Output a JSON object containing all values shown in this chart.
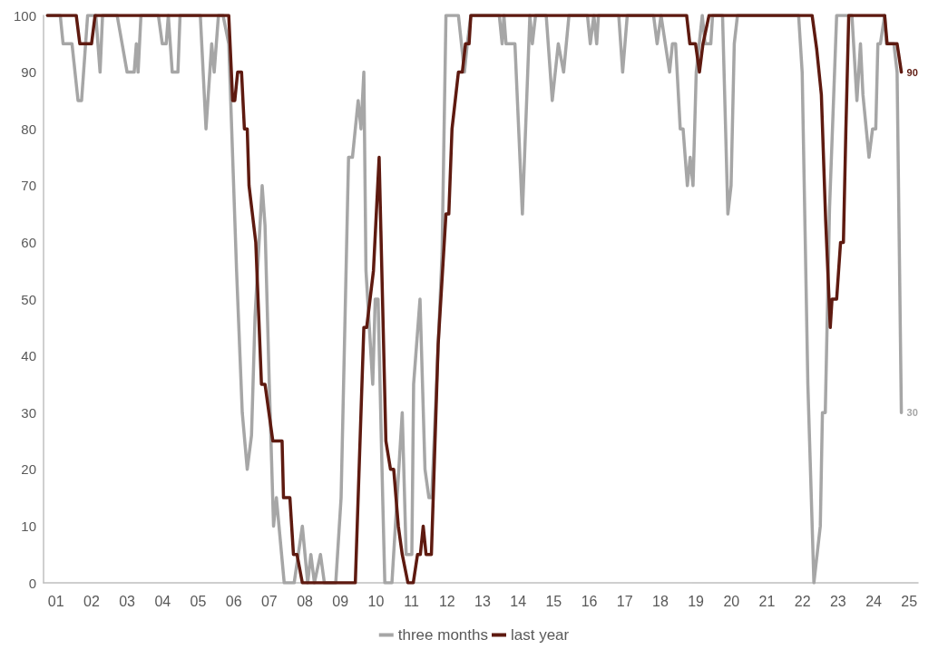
{
  "chart_data": {
    "type": "line",
    "xlim": [
      2000.65,
      2025.25
    ],
    "xticks": [
      {
        "value": 2001,
        "label": "01"
      },
      {
        "value": 2002,
        "label": "02"
      },
      {
        "value": 2003,
        "label": "03"
      },
      {
        "value": 2004,
        "label": "04"
      },
      {
        "value": 2005,
        "label": "05"
      },
      {
        "value": 2006,
        "label": "06"
      },
      {
        "value": 2007,
        "label": "07"
      },
      {
        "value": 2008,
        "label": "08"
      },
      {
        "value": 2009,
        "label": "09"
      },
      {
        "value": 2010,
        "label": "10"
      },
      {
        "value": 2011,
        "label": "11"
      },
      {
        "value": 2012,
        "label": "12"
      },
      {
        "value": 2013,
        "label": "13"
      },
      {
        "value": 2014,
        "label": "14"
      },
      {
        "value": 2015,
        "label": "15"
      },
      {
        "value": 2016,
        "label": "16"
      },
      {
        "value": 2017,
        "label": "17"
      },
      {
        "value": 2018,
        "label": "18"
      },
      {
        "value": 2019,
        "label": "19"
      },
      {
        "value": 2020,
        "label": "20"
      },
      {
        "value": 2021,
        "label": "21"
      },
      {
        "value": 2022,
        "label": "22"
      },
      {
        "value": 2023,
        "label": "23"
      },
      {
        "value": 2024,
        "label": "24"
      },
      {
        "value": 2025,
        "label": "25"
      }
    ],
    "ylim": [
      0,
      100
    ],
    "yticks": [
      0,
      10,
      20,
      30,
      40,
      50,
      60,
      70,
      80,
      90,
      100
    ],
    "grid": false,
    "legend": "bottom",
    "marker": "none",
    "line_style": "solid",
    "series": [
      {
        "name": "three months",
        "color": "#a6a6a6",
        "x": [
          2000.76,
          2001.12,
          2001.2,
          2001.45,
          2001.62,
          2001.72,
          2001.89,
          2002.12,
          2002.24,
          2002.31,
          2002.72,
          2002.86,
          2003.0,
          2003.2,
          2003.26,
          2003.31,
          2003.39,
          2003.88,
          2003.99,
          2004.1,
          2004.16,
          2004.27,
          2004.43,
          2004.49,
          2005.06,
          2005.22,
          2005.38,
          2005.45,
          2005.57,
          2005.7,
          2005.86,
          2006.08,
          2006.24,
          2006.38,
          2006.5,
          2006.6,
          2006.8,
          2006.88,
          2007.0,
          2007.12,
          2007.2,
          2007.42,
          2007.7,
          2007.93,
          2008.08,
          2008.17,
          2008.27,
          2008.44,
          2008.55,
          2008.87,
          2009.02,
          2009.23,
          2009.34,
          2009.5,
          2009.58,
          2009.66,
          2009.72,
          2009.91,
          2009.98,
          2010.06,
          2010.19,
          2010.25,
          2010.45,
          2010.74,
          2010.85,
          2011.01,
          2011.06,
          2011.24,
          2011.38,
          2011.49,
          2011.57,
          2011.86,
          2011.97,
          2012.32,
          2012.49,
          2012.57,
          2012.67,
          2013.47,
          2013.55,
          2013.6,
          2013.66,
          2013.91,
          2014.12,
          2014.33,
          2014.4,
          2014.49,
          2014.79,
          2014.96,
          2015.13,
          2015.28,
          2015.43,
          2015.95,
          2016.03,
          2016.13,
          2016.21,
          2016.26,
          2016.83,
          2016.94,
          2017.07,
          2017.81,
          2017.91,
          2018.02,
          2018.26,
          2018.34,
          2018.43,
          2018.56,
          2018.64,
          2018.76,
          2018.84,
          2018.92,
          2019.01,
          2019.18,
          2019.26,
          2019.42,
          2019.47,
          2019.75,
          2019.9,
          2019.99,
          2020.08,
          2020.17,
          2021.89,
          2021.99,
          2022.15,
          2022.32,
          2022.5,
          2022.56,
          2022.64,
          2022.76,
          2022.96,
          2023.39,
          2023.53,
          2023.63,
          2023.7,
          2023.87,
          2023.97,
          2024.06,
          2024.12,
          2024.19,
          2024.31,
          2024.36,
          2024.57,
          2024.66,
          2024.78
        ],
        "values": [
          100,
          100,
          95,
          95,
          85,
          85,
          100,
          100,
          90,
          100,
          100,
          95,
          90,
          90,
          95,
          90,
          100,
          100,
          95,
          95,
          100,
          90,
          90,
          100,
          100,
          80,
          95,
          90,
          100,
          100,
          95,
          55,
          30,
          20,
          26,
          47,
          70,
          63,
          35,
          10,
          15,
          0,
          0,
          10,
          0,
          5,
          0,
          5,
          0,
          0,
          15,
          75,
          75,
          85,
          80,
          90,
          55,
          35,
          50,
          50,
          15,
          0,
          0,
          30,
          5,
          5,
          35,
          50,
          20,
          15,
          15,
          58,
          100,
          100,
          90,
          95,
          100,
          100,
          95,
          100,
          95,
          95,
          65,
          100,
          95,
          100,
          100,
          85,
          95,
          90,
          100,
          100,
          95,
          100,
          95,
          100,
          100,
          90,
          100,
          100,
          95,
          100,
          90,
          95,
          95,
          80,
          80,
          70,
          75,
          70,
          90,
          100,
          95,
          95,
          100,
          100,
          65,
          70,
          95,
          100,
          100,
          90,
          35,
          0,
          10,
          30,
          30,
          66,
          100,
          100,
          85,
          95,
          86,
          75,
          80,
          80,
          95,
          95,
          100,
          95,
          95,
          90,
          30
        ],
        "value_labels": [
          null,
          null,
          null,
          null,
          null,
          null,
          null,
          null,
          null,
          null,
          null,
          null,
          null,
          null,
          null,
          null,
          null,
          null,
          null,
          null,
          null,
          null,
          null,
          null,
          null,
          null,
          null,
          null,
          null,
          null,
          null,
          null,
          null,
          null,
          null,
          null,
          null,
          null,
          null,
          null,
          null,
          null,
          null,
          null,
          null,
          null,
          null,
          null,
          null,
          null,
          null,
          null,
          null,
          null,
          null,
          null,
          null,
          null,
          null,
          null,
          null,
          null,
          null,
          null,
          null,
          null,
          null,
          null,
          null,
          null,
          null,
          null,
          null,
          null,
          null,
          null,
          null,
          null,
          null,
          null,
          null,
          null,
          null,
          null,
          null,
          null,
          null,
          null,
          null,
          null,
          null,
          null,
          null,
          null,
          null,
          null,
          null,
          null,
          null,
          null,
          null,
          null,
          null,
          null,
          null,
          null,
          null,
          null,
          null,
          null,
          null,
          null,
          null,
          null,
          null,
          null,
          null,
          null,
          null,
          null,
          null,
          null,
          null,
          null,
          null,
          null,
          null,
          null,
          null,
          null,
          null,
          null,
          null,
          null,
          null,
          null,
          null,
          null,
          null,
          null,
          null,
          null,
          "30"
        ]
      },
      {
        "name": "last year",
        "color": "#5e1a10",
        "x": [
          2000.76,
          2001.57,
          2001.67,
          2002.0,
          2002.1,
          2005.86,
          2005.97,
          2006.03,
          2006.11,
          2006.22,
          2006.3,
          2006.38,
          2006.43,
          2006.62,
          2006.78,
          2006.88,
          2007.1,
          2007.36,
          2007.4,
          2007.58,
          2007.68,
          2007.78,
          2007.93,
          2009.42,
          2009.66,
          2009.74,
          2009.93,
          2010.09,
          2010.28,
          2010.41,
          2010.5,
          2010.63,
          2010.74,
          2010.9,
          2011.05,
          2011.17,
          2011.25,
          2011.33,
          2011.41,
          2011.56,
          2011.75,
          2011.97,
          2012.05,
          2012.14,
          2012.32,
          2012.43,
          2012.52,
          2012.62,
          2012.67,
          2018.74,
          2018.83,
          2018.99,
          2019.1,
          2019.2,
          2019.37,
          2022.27,
          2022.4,
          2022.53,
          2022.65,
          2022.78,
          2022.83,
          2022.96,
          2023.07,
          2023.15,
          2023.22,
          2023.3,
          2024.31,
          2024.38,
          2024.66,
          2024.78
        ],
        "values": [
          100,
          100,
          95,
          95,
          100,
          100,
          85,
          85,
          90,
          90,
          80,
          80,
          70,
          60,
          35,
          35,
          25,
          25,
          15,
          15,
          5,
          5,
          0,
          0,
          45,
          45,
          55,
          75,
          25,
          20,
          20,
          10,
          5,
          0,
          0,
          5,
          5,
          10,
          5,
          5,
          42,
          65,
          65,
          80,
          90,
          90,
          95,
          95,
          100,
          100,
          95,
          95,
          90,
          95,
          100,
          100,
          94,
          86,
          64,
          45,
          50,
          50,
          60,
          60,
          80,
          100,
          100,
          95,
          95,
          90
        ],
        "value_labels": [
          null,
          null,
          null,
          null,
          null,
          null,
          null,
          null,
          null,
          null,
          null,
          null,
          null,
          null,
          null,
          null,
          null,
          null,
          null,
          null,
          null,
          null,
          null,
          null,
          null,
          null,
          null,
          null,
          null,
          null,
          null,
          null,
          null,
          null,
          null,
          null,
          null,
          null,
          null,
          null,
          null,
          null,
          null,
          null,
          null,
          null,
          null,
          null,
          null,
          null,
          null,
          null,
          null,
          null,
          null,
          null,
          null,
          null,
          null,
          null,
          null,
          null,
          null,
          null,
          null,
          null,
          null,
          null,
          null,
          "90"
        ]
      }
    ]
  }
}
